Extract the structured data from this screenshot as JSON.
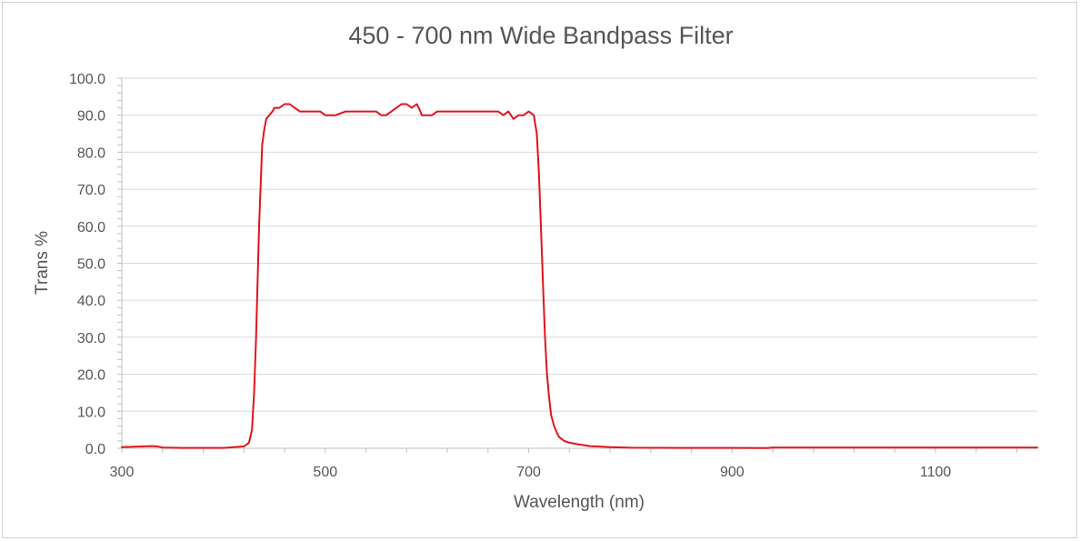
{
  "chart_data": {
    "type": "line",
    "title": "450 - 700 nm Wide Bandpass Filter",
    "xlabel": "Wavelength (nm)",
    "ylabel": "Trans %",
    "xlim": [
      300,
      1200
    ],
    "ylim": [
      0,
      100
    ],
    "x_ticks": [
      300,
      500,
      700,
      900,
      1100
    ],
    "x_tick_labels": [
      "300",
      "500",
      "700",
      "900",
      "1100"
    ],
    "y_ticks": [
      0,
      10,
      20,
      30,
      40,
      50,
      60,
      70,
      80,
      90,
      100
    ],
    "y_tick_labels": [
      "0.0",
      "10.0",
      "20.0",
      "30.0",
      "40.0",
      "50.0",
      "60.0",
      "70.0",
      "80.0",
      "90.0",
      "100.0"
    ],
    "grid": "horizontal",
    "colors": {
      "series": "#e0141e",
      "grid": "#d9d9d9",
      "axis": "#bfbfbf",
      "text": "#555555"
    },
    "series": [
      {
        "x": [
          300,
          320,
          330,
          335,
          340,
          360,
          400,
          420,
          425,
          428,
          430,
          432,
          435,
          438,
          440,
          442,
          445,
          448,
          450,
          455,
          460,
          465,
          470,
          475,
          478,
          480,
          485,
          490,
          495,
          500,
          505,
          510,
          520,
          530,
          540,
          545,
          550,
          555,
          560,
          565,
          570,
          575,
          580,
          585,
          590,
          592,
          595,
          598,
          600,
          605,
          610,
          620,
          630,
          640,
          650,
          660,
          665,
          670,
          675,
          680,
          685,
          690,
          695,
          700,
          705,
          708,
          710,
          712,
          714,
          716,
          718,
          720,
          722,
          725,
          728,
          730,
          735,
          740,
          750,
          760,
          780,
          800,
          850,
          900,
          935,
          940,
          1000,
          1100,
          1200
        ],
        "y": [
          0.3,
          0.5,
          0.6,
          0.5,
          0.2,
          0.1,
          0.1,
          0.5,
          1.5,
          5,
          15,
          30,
          60,
          82,
          86,
          89,
          90,
          91,
          92,
          92,
          93,
          93,
          92,
          91,
          91,
          91,
          91,
          91,
          91,
          90,
          90,
          90,
          91,
          91,
          91,
          91,
          91,
          90,
          90,
          91,
          92,
          93,
          93,
          92,
          93,
          92,
          90,
          90,
          90,
          90,
          91,
          91,
          91,
          91,
          91,
          91,
          91,
          91,
          90,
          91,
          89,
          90,
          90,
          91,
          90,
          85,
          75,
          60,
          45,
          30,
          20,
          14,
          9,
          6,
          4,
          3,
          2,
          1.5,
          1,
          0.6,
          0.3,
          0.15,
          0.1,
          0.1,
          0.05,
          0.2,
          0.2,
          0.2,
          0.2
        ]
      }
    ]
  }
}
